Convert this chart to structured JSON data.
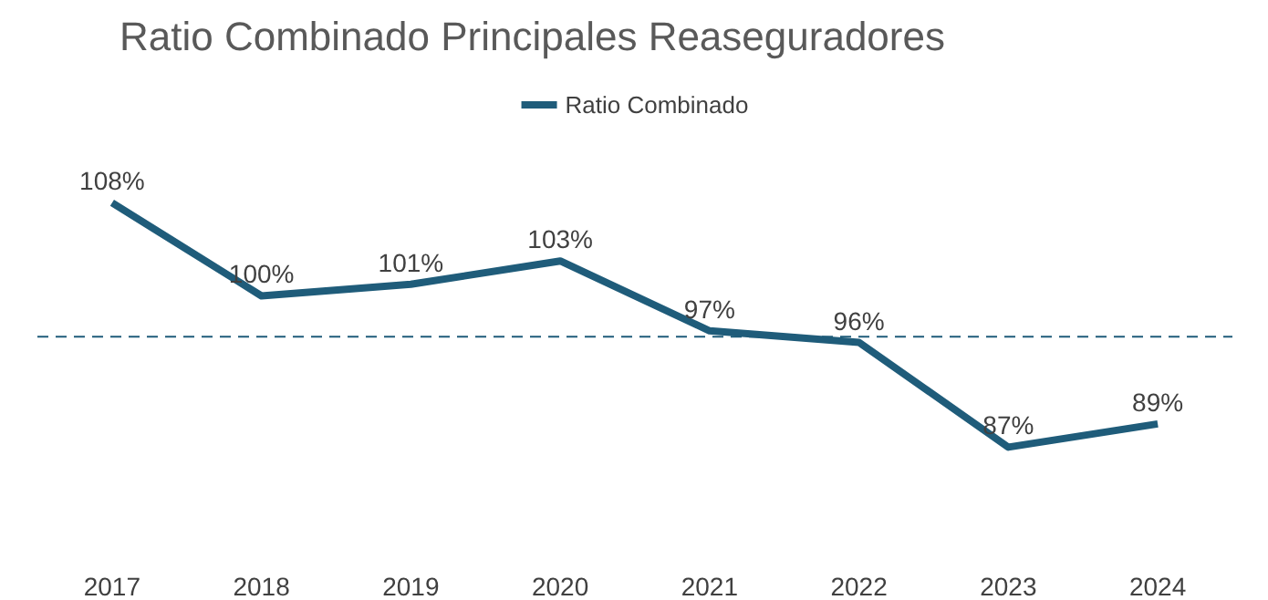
{
  "chart_data": {
    "type": "line",
    "title": "Ratio Combinado Principales Reaseguradores",
    "categories": [
      "2017",
      "2018",
      "2019",
      "2020",
      "2021",
      "2022",
      "2023",
      "2024"
    ],
    "series": [
      {
        "name": "Ratio Combinado",
        "color": "#1f5c7a",
        "values": [
          108,
          100,
          101,
          103,
          97,
          96,
          87,
          89
        ],
        "value_labels": [
          "108%",
          "100%",
          "101%",
          "103%",
          "97%",
          "96%",
          "87%",
          "89%"
        ]
      }
    ],
    "ref_lines": [
      {
        "axis": "y",
        "value": 96.5,
        "color": "#1f5c7a",
        "line_style": "dashed"
      }
    ],
    "legend": "top",
    "grid": false,
    "marker": "none",
    "line_style": "solid",
    "tick_labels": "x"
  }
}
